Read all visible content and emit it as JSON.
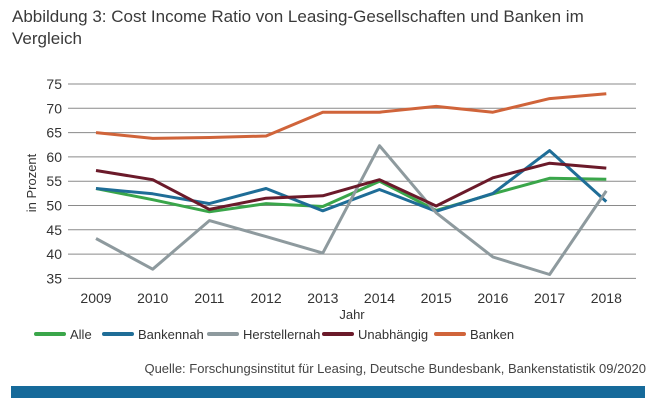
{
  "chart_data": {
    "type": "line",
    "title": "Abbildung 3: Cost Income Ratio von Leasing-Gesellschaften und Banken im Vergleich",
    "xlabel": "Jahr",
    "ylabel": "in Prozent",
    "ylim": [
      35,
      75
    ],
    "yticks": [
      35,
      40,
      45,
      50,
      55,
      60,
      65,
      70,
      75
    ],
    "grid": "horizontal",
    "legend": "bottom",
    "x": [
      "2009",
      "2010",
      "2011",
      "2012",
      "2013",
      "2014",
      "2015",
      "2016",
      "2017",
      "2018"
    ],
    "series": [
      {
        "name": "Alle",
        "color": "#3aa64a",
        "values": [
          53.5,
          51.2,
          48.7,
          50.4,
          49.8,
          55.0,
          49.0,
          52.4,
          55.6,
          55.4
        ]
      },
      {
        "name": "Bankennah",
        "color": "#1f6d97",
        "values": [
          53.5,
          52.4,
          50.4,
          53.5,
          48.9,
          53.3,
          48.8,
          52.5,
          61.3,
          50.8
        ]
      },
      {
        "name": "Herstellernah",
        "color": "#8e9a9e",
        "values": [
          43.2,
          36.9,
          46.9,
          43.6,
          40.2,
          62.3,
          48.5,
          39.4,
          35.8,
          53.0
        ]
      },
      {
        "name": "Unabhängig",
        "color": "#6b1a2a",
        "values": [
          57.2,
          55.3,
          49.2,
          51.5,
          52.0,
          55.3,
          49.9,
          55.7,
          58.7,
          57.7
        ]
      },
      {
        "name": "Banken",
        "color": "#d0643a",
        "values": [
          65.0,
          63.8,
          64.0,
          64.3,
          69.2,
          69.2,
          70.4,
          69.2,
          72.0,
          73.0
        ]
      }
    ]
  },
  "source": "Quelle: Forschungsinstitut für Leasing, Deutsche Bundesbank, Bankenstatistik 09/2020",
  "footer_bar_color": "#166a9a"
}
